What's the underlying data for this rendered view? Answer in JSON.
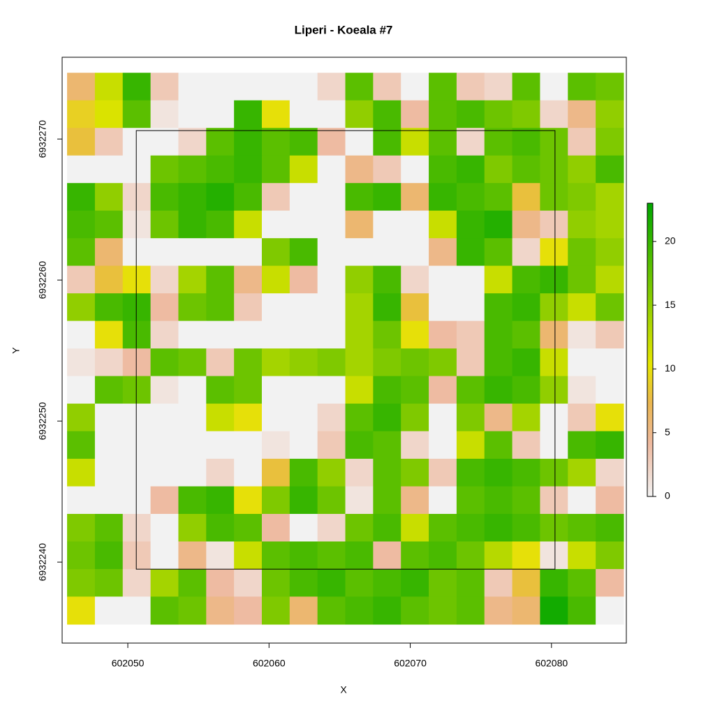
{
  "chart_data": {
    "type": "raster",
    "title": "Liperi - Koeala #7",
    "x_label": "X",
    "y_label": "Y",
    "xlim": [
      602045.35,
      602085.3
    ],
    "ylim": [
      6932234.26,
      6932275.8
    ],
    "xticks": [
      602050,
      602060,
      602070,
      602080
    ],
    "yticks": [
      6932240,
      6932250,
      6932260,
      6932270
    ],
    "zlim": [
      0,
      23
    ],
    "zticks": [
      0,
      5,
      10,
      15,
      20
    ],
    "colors": [
      "#F2F2F2",
      "#EEB99F",
      "#EAB64E",
      "#E6E600",
      "#00A600"
    ],
    "color_stops": [
      0,
      0.18,
      0.32,
      0.45,
      1
    ],
    "plot_boundary": {
      "xmin": 602050.6,
      "xmax": 602080.25,
      "ymin": 6932239.5,
      "ymax": 6932270.6
    },
    "raster": {
      "xmin": 602045.7,
      "xmax": 602085.1,
      "ymin": 6932235.6,
      "ymax": 6932274.7,
      "z": [
        [
          6,
          12,
          20,
          3,
          0,
          0,
          0,
          0,
          0,
          2,
          18,
          3,
          0,
          18,
          3,
          2,
          18,
          0,
          18,
          17
        ],
        [
          9,
          11,
          18,
          1,
          0,
          0,
          20,
          10,
          0,
          0,
          15,
          19,
          4,
          18,
          19,
          17,
          16,
          2,
          5,
          15
        ],
        [
          8,
          3,
          0,
          0,
          2,
          18,
          20,
          18,
          19,
          4,
          0,
          19,
          12,
          18,
          2,
          18,
          19,
          17,
          3,
          16
        ],
        [
          0,
          0,
          0,
          17,
          18,
          19,
          20,
          18,
          12,
          0,
          5,
          3,
          0,
          19,
          20,
          16,
          18,
          17,
          15,
          19
        ],
        [
          20,
          15,
          2,
          19,
          20,
          21,
          19,
          3,
          0,
          0,
          19,
          20,
          6,
          20,
          19,
          18,
          8,
          17,
          16,
          14
        ],
        [
          19,
          18,
          1,
          17,
          20,
          19,
          12,
          0,
          0,
          0,
          6,
          0,
          0,
          12,
          20,
          21,
          5,
          3,
          15,
          14
        ],
        [
          18,
          6,
          0,
          0,
          0,
          0,
          0,
          16,
          19,
          0,
          0,
          0,
          0,
          5,
          20,
          18,
          2,
          10,
          17,
          15
        ],
        [
          3,
          8,
          10,
          2,
          14,
          18,
          5,
          12,
          4,
          0,
          15,
          19,
          2,
          0,
          0,
          12,
          19,
          20,
          17,
          13
        ],
        [
          15,
          19,
          20,
          4,
          17,
          18,
          3,
          0,
          0,
          0,
          14,
          20,
          8,
          0,
          0,
          19,
          20,
          15,
          12,
          17
        ],
        [
          0,
          10,
          19,
          2,
          0,
          0,
          0,
          0,
          0,
          0,
          14,
          17,
          10,
          4,
          3,
          19,
          18,
          6,
          1,
          3
        ],
        [
          1,
          2,
          4,
          18,
          17,
          3,
          17,
          14,
          15,
          16,
          14,
          16,
          17,
          16,
          3,
          19,
          20,
          12,
          0,
          0
        ],
        [
          0,
          18,
          17,
          1,
          0,
          18,
          17,
          0,
          0,
          0,
          12,
          19,
          18,
          4,
          18,
          20,
          19,
          15,
          1,
          0
        ],
        [
          15,
          0,
          0,
          0,
          0,
          12,
          10,
          0,
          0,
          2,
          18,
          20,
          16,
          0,
          16,
          5,
          14,
          0,
          3,
          10
        ],
        [
          18,
          0,
          0,
          0,
          0,
          0,
          0,
          1,
          0,
          3,
          19,
          18,
          2,
          0,
          12,
          18,
          3,
          0,
          19,
          20
        ],
        [
          12,
          0,
          0,
          0,
          0,
          2,
          0,
          8,
          19,
          15,
          2,
          18,
          16,
          3,
          19,
          20,
          19,
          17,
          14,
          2
        ],
        [
          0,
          0,
          0,
          4,
          19,
          20,
          10,
          16,
          20,
          17,
          1,
          18,
          5,
          0,
          18,
          19,
          18,
          3,
          0,
          4
        ],
        [
          16,
          18,
          2,
          0,
          15,
          19,
          18,
          4,
          0,
          2,
          17,
          19,
          12,
          18,
          19,
          20,
          19,
          17,
          18,
          19
        ],
        [
          17,
          19,
          3,
          0,
          5,
          1,
          12,
          18,
          19,
          18,
          19,
          4,
          18,
          19,
          17,
          13,
          10,
          1,
          12,
          16
        ],
        [
          16,
          17,
          2,
          14,
          18,
          4,
          2,
          17,
          19,
          20,
          18,
          19,
          20,
          17,
          18,
          3,
          8,
          20,
          18,
          4
        ],
        [
          10,
          0,
          0,
          18,
          17,
          5,
          4,
          16,
          6,
          18,
          19,
          20,
          18,
          17,
          18,
          5,
          6,
          22,
          19,
          0
        ]
      ]
    }
  }
}
